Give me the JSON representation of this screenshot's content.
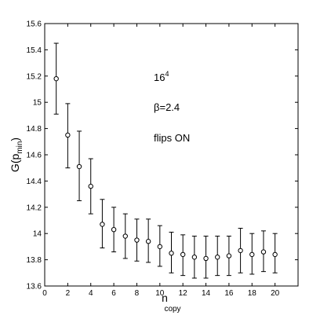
{
  "chart_data": {
    "type": "scatter",
    "title": "",
    "xlabel": {
      "main": "n",
      "sub": "copy"
    },
    "ylabel": {
      "main": "G(p",
      "sub": "min",
      "close": ")"
    },
    "xlim": [
      0,
      22
    ],
    "ylim": [
      13.6,
      15.6
    ],
    "x_ticks": [
      0,
      2,
      4,
      6,
      8,
      10,
      12,
      14,
      16,
      18,
      20
    ],
    "x_tick_labels": [
      "0",
      "2",
      "4",
      "6",
      "8",
      "10",
      "12",
      "14",
      "16",
      "18",
      "20"
    ],
    "y_ticks": [
      13.6,
      13.8,
      14,
      14.2,
      14.4,
      14.6,
      14.8,
      15,
      15.2,
      15.4,
      15.6
    ],
    "y_tick_labels": [
      "13.6",
      "13.8",
      "14",
      "14.2",
      "14.4",
      "14.6",
      "14.8",
      "15",
      "15.2",
      "15.4",
      "15.6"
    ],
    "grid": false,
    "marker": "open-circle",
    "series": [
      {
        "x": [
          1,
          2,
          3,
          4,
          5,
          6,
          7,
          8,
          9,
          10,
          11,
          12,
          13,
          14,
          15,
          16,
          17,
          18,
          19,
          20
        ],
        "y": [
          15.18,
          14.75,
          14.51,
          14.36,
          14.07,
          14.03,
          13.98,
          13.95,
          13.94,
          13.9,
          13.85,
          13.84,
          13.82,
          13.81,
          13.82,
          13.83,
          13.87,
          13.84,
          13.86,
          13.84
        ],
        "err_low": [
          14.91,
          14.5,
          14.25,
          14.15,
          13.89,
          13.86,
          13.81,
          13.79,
          13.78,
          13.75,
          13.7,
          13.68,
          13.66,
          13.66,
          13.68,
          13.68,
          13.7,
          13.69,
          13.71,
          13.7
        ],
        "err_high": [
          15.45,
          14.99,
          14.78,
          14.57,
          14.26,
          14.2,
          14.15,
          14.11,
          14.11,
          14.06,
          14.01,
          13.99,
          13.98,
          13.98,
          13.98,
          13.98,
          14.04,
          14.0,
          14.02,
          14.0
        ]
      }
    ],
    "annotations": [
      {
        "text": "16",
        "sup": "4"
      },
      {
        "text": "β=2.4"
      },
      {
        "text": "flips ON"
      }
    ]
  }
}
